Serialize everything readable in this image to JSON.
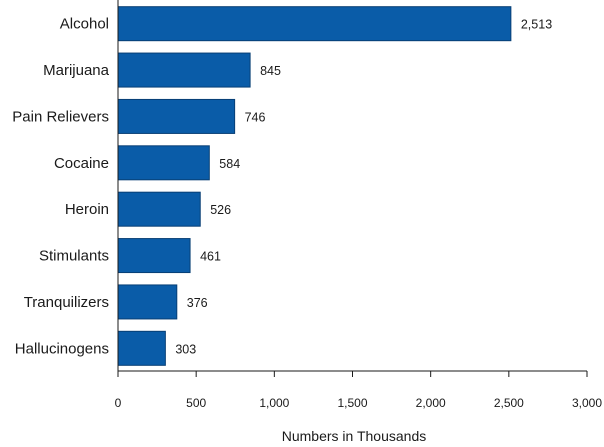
{
  "chart_data": {
    "type": "bar",
    "orientation": "horizontal",
    "categories": [
      "Alcohol",
      "Marijuana",
      "Pain Relievers",
      "Cocaine",
      "Heroin",
      "Stimulants",
      "Tranquilizers",
      "Hallucinogens"
    ],
    "values": [
      2513,
      845,
      746,
      584,
      526,
      461,
      376,
      303
    ],
    "value_labels": [
      "2,513",
      "845",
      "746",
      "584",
      "526",
      "461",
      "376",
      "303"
    ],
    "xlabel": "Numbers in Thousands",
    "ylabel": "",
    "xlim": [
      0,
      3000
    ],
    "xticks": [
      0,
      500,
      1000,
      1500,
      2000,
      2500,
      3000
    ],
    "xtick_labels": [
      "0",
      "500",
      "1,000",
      "1,500",
      "2,000",
      "2,500",
      "3,000"
    ],
    "grid": false,
    "bar_color": "#0a5ca8",
    "bar_edge_color": "#073f75"
  }
}
